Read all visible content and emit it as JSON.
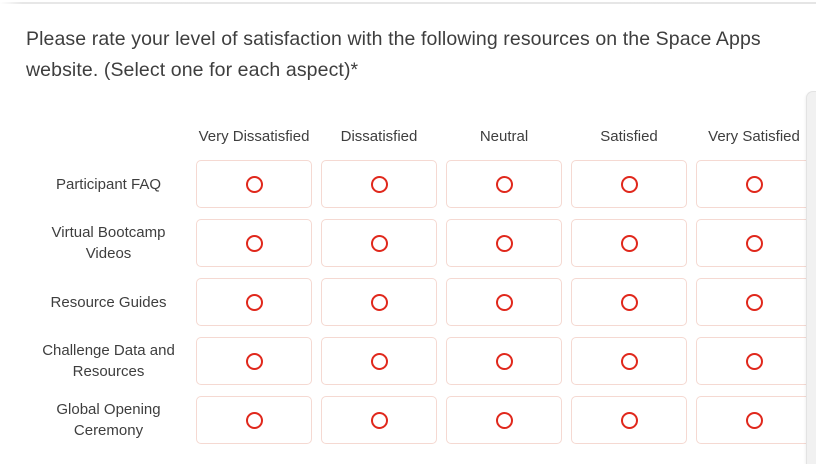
{
  "question": {
    "title": "Please rate your level of satisfaction with the following resources on the Space Apps website. (Select one for each aspect)*"
  },
  "matrix": {
    "columns": [
      "Very Dissatisfied",
      "Dissatisfied",
      "Neutral",
      "Satisfied",
      "Very Satisfied"
    ],
    "rows": [
      {
        "label": "Participant FAQ"
      },
      {
        "label": "Virtual Bootcamp Videos"
      },
      {
        "label": "Resource Guides"
      },
      {
        "label": "Challenge Data and Resources"
      },
      {
        "label": "Global Opening Ceremony"
      }
    ],
    "selected": null,
    "radio_state": "unselected"
  },
  "colors": {
    "radio_red": "#e0281c",
    "cell_border_pink": "#f5d9d2",
    "text_dark": "#3e3e3e",
    "divider_gray": "#e5e5e5",
    "scrollbar_gray": "#f1f1f1"
  }
}
